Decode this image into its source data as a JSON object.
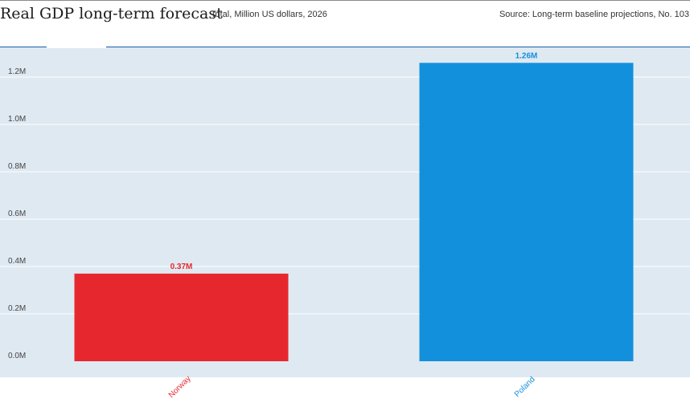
{
  "header": {
    "title": "Real GDP long-term forecast",
    "subtitle": "Total, Million US dollars, 2026",
    "source": "Source: Long-term baseline projections, No. 103"
  },
  "chart_data": {
    "type": "bar",
    "title": "Real GDP long-term forecast",
    "subtitle": "Total, Million US dollars, 2026",
    "xlabel": "",
    "ylabel": "",
    "categories": [
      "Norway",
      "Poland"
    ],
    "values": [
      0.37,
      1.26
    ],
    "value_labels": [
      "0.37M",
      "1.26M"
    ],
    "colors": [
      "#e6282e",
      "#1390dc"
    ],
    "ylim": [
      0,
      1.3
    ],
    "yticks": [
      0.0,
      0.2,
      0.4,
      0.6,
      0.8,
      1.0,
      1.2
    ],
    "ytick_labels": [
      "0.0M",
      "0.2M",
      "0.4M",
      "0.6M",
      "0.8M",
      "1.0M",
      "1.2M"
    ],
    "grid": true,
    "legend": "none"
  }
}
